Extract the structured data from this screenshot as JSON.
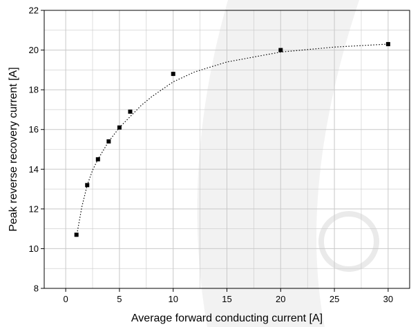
{
  "chart_data": {
    "type": "scatter",
    "title": "",
    "xlabel": "Average forward conducting current [A]",
    "ylabel": "Peak reverse recovery current [A]",
    "xlim": [
      -2,
      32
    ],
    "ylim": [
      8,
      22
    ],
    "xticks": [
      0,
      5,
      10,
      15,
      20,
      25,
      30
    ],
    "yticks": [
      8,
      10,
      12,
      14,
      16,
      18,
      20,
      22
    ],
    "x_minor_step": 2.5,
    "y_minor_step": 1,
    "grid": true,
    "points": {
      "x": [
        1,
        2,
        3,
        4,
        5,
        6,
        10,
        20,
        30
      ],
      "y": [
        10.7,
        13.2,
        14.5,
        15.4,
        16.1,
        16.9,
        18.8,
        20.0,
        20.3
      ]
    },
    "fit": {
      "style": "dotted",
      "x": [
        1,
        1.5,
        2,
        2.5,
        3,
        4,
        5,
        6,
        7,
        8,
        10,
        12,
        15,
        20,
        25,
        30
      ],
      "y": [
        10.6,
        12.1,
        13.2,
        13.95,
        14.5,
        15.4,
        16.1,
        16.65,
        17.2,
        17.65,
        18.4,
        18.9,
        19.4,
        19.9,
        20.15,
        20.3
      ]
    },
    "colors": {
      "marker": "#000000",
      "grid": "#c8c8c8",
      "watermark": "#f2f2f2",
      "watermark_mark": "#eaeaea"
    }
  }
}
